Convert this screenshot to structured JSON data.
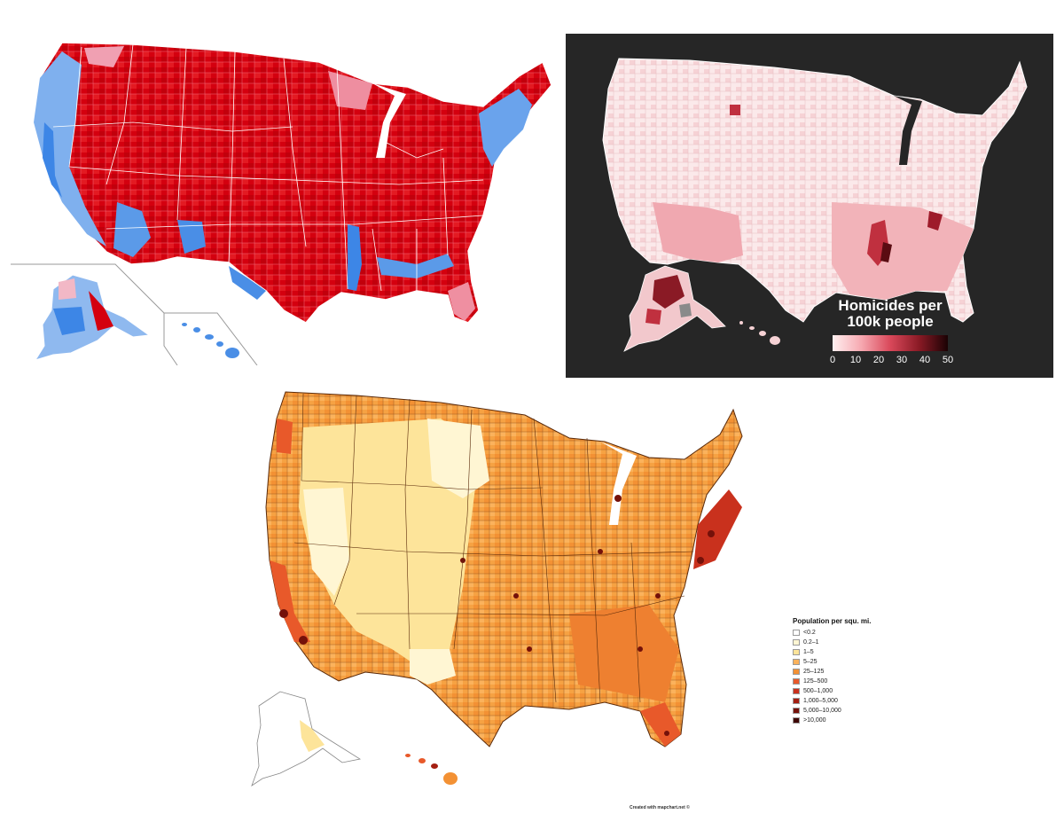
{
  "maps": {
    "election": {
      "colors": {
        "dark_red": "#c4000b",
        "red": "#e1151f",
        "light_red": "#ef8fa1",
        "pink": "#f2b8c6",
        "light_blue": "#8fb9ef",
        "blue": "#3d86e6",
        "dark_blue": "#1f5fd1"
      }
    },
    "homicide": {
      "background": "#262626",
      "legend": {
        "title_line1": "Homicides per",
        "title_line2": "100k people",
        "ticks": [
          "0",
          "10",
          "20",
          "30",
          "40",
          "50"
        ],
        "gradient": [
          "#fff0f0",
          "#f6a8b0",
          "#d9485a",
          "#9e1b2a",
          "#5a0c12",
          "#1a0204"
        ]
      }
    },
    "density": {
      "legend": {
        "title": "Population per squ. mi.",
        "items": [
          {
            "label": "<0.2",
            "color": "#ffffff"
          },
          {
            "label": "0.2–1",
            "color": "#fff6d3"
          },
          {
            "label": "1–5",
            "color": "#fde49a"
          },
          {
            "label": "5–25",
            "color": "#fbb25c"
          },
          {
            "label": "25–125",
            "color": "#f39134"
          },
          {
            "label": "125–500",
            "color": "#e8592a"
          },
          {
            "label": "500–1,000",
            "color": "#c9311d"
          },
          {
            "label": "1,000–5,000",
            "color": "#a41f12"
          },
          {
            "label": "5,000–10,000",
            "color": "#74110a"
          },
          {
            "label": ">10,000",
            "color": "#3e0603"
          }
        ]
      },
      "credit": "Created with mapchart.net ©"
    }
  }
}
